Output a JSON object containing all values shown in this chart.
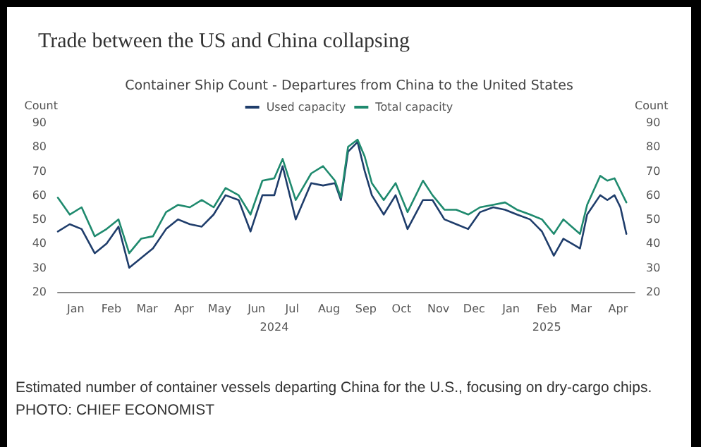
{
  "chart_data": {
    "type": "line",
    "title": "Trade between the US and China collapsing",
    "subtitle": "Container Ship Count - Departures from China to the United States",
    "ylabel": "Count",
    "y2label": "Count",
    "x": [
      "2024-01-01",
      "2024-01-11",
      "2024-01-21",
      "2024-02-01",
      "2024-02-11",
      "2024-02-21",
      "2024-03-01",
      "2024-03-11",
      "2024-03-21",
      "2024-04-01",
      "2024-04-11",
      "2024-04-21",
      "2024-05-01",
      "2024-05-11",
      "2024-05-21",
      "2024-06-01",
      "2024-06-11",
      "2024-06-21",
      "2024-07-01",
      "2024-07-08",
      "2024-07-19",
      "2024-08-01",
      "2024-08-11",
      "2024-08-21",
      "2024-08-26",
      "2024-09-01",
      "2024-09-09",
      "2024-09-15",
      "2024-09-21",
      "2024-10-01",
      "2024-10-11",
      "2024-10-21",
      "2024-11-03",
      "2024-11-11",
      "2024-11-21",
      "2024-12-01",
      "2024-12-11",
      "2024-12-21",
      "2025-01-01",
      "2025-01-11",
      "2025-01-21",
      "2025-02-01",
      "2025-02-11",
      "2025-02-21",
      "2025-03-01",
      "2025-03-08",
      "2025-03-15",
      "2025-03-21",
      "2025-04-01",
      "2025-04-07",
      "2025-04-13",
      "2025-04-18",
      "2025-04-23"
    ],
    "series": [
      {
        "name": "Used capacity",
        "color": "#1f3d6b",
        "values": [
          45,
          48,
          46,
          36,
          40,
          47,
          30,
          34,
          38,
          46,
          50,
          48,
          47,
          52,
          60,
          58,
          45,
          60,
          60,
          72,
          50,
          65,
          64,
          65,
          58,
          78,
          82,
          70,
          60,
          52,
          60,
          46,
          58,
          58,
          50,
          48,
          46,
          53,
          55,
          54,
          52,
          50,
          45,
          35,
          42,
          40,
          38,
          52,
          60,
          58,
          60,
          55,
          44
        ]
      },
      {
        "name": "Total capacity",
        "color": "#1f8a6e",
        "values": [
          59,
          52,
          55,
          43,
          46,
          50,
          36,
          42,
          43,
          53,
          56,
          55,
          58,
          55,
          63,
          60,
          52,
          66,
          67,
          75,
          58,
          69,
          72,
          66,
          59,
          80,
          83,
          76,
          65,
          58,
          65,
          53,
          66,
          60,
          54,
          54,
          52,
          55,
          56,
          57,
          54,
          52,
          50,
          44,
          50,
          47,
          44,
          56,
          68,
          66,
          67,
          62,
          57
        ]
      }
    ],
    "xlim": [
      "2024-01-01",
      "2025-04-30"
    ],
    "xticks": [
      {
        "value": "2024-01-16",
        "label": "Jan"
      },
      {
        "value": "2024-02-15",
        "label": "Feb"
      },
      {
        "value": "2024-03-16",
        "label": "Mar"
      },
      {
        "value": "2024-04-16",
        "label": "Apr"
      },
      {
        "value": "2024-05-16",
        "label": "May"
      },
      {
        "value": "2024-06-16",
        "label": "Jun"
      },
      {
        "value": "2024-07-16",
        "label": "Jul"
      },
      {
        "value": "2024-08-16",
        "label": "Aug"
      },
      {
        "value": "2024-09-16",
        "label": "Sep"
      },
      {
        "value": "2024-10-16",
        "label": "Oct"
      },
      {
        "value": "2024-11-16",
        "label": "Nov"
      },
      {
        "value": "2024-12-16",
        "label": "Dec"
      },
      {
        "value": "2025-01-16",
        "label": "Jan"
      },
      {
        "value": "2025-02-15",
        "label": "Feb"
      },
      {
        "value": "2025-03-16",
        "label": "Mar"
      },
      {
        "value": "2025-04-16",
        "label": "Apr"
      }
    ],
    "x2lim": [
      "2024-01-01",
      "2025-04-30"
    ],
    "x2ticks": [
      {
        "value": "2024-07-01",
        "label": "2024"
      },
      {
        "value": "2025-02-15",
        "label": "2025"
      }
    ],
    "ylim": [
      20,
      90
    ],
    "yticks": [
      20,
      30,
      40,
      50,
      60,
      70,
      80,
      90
    ],
    "y2lim": [
      20,
      90
    ],
    "y2ticks": [
      20,
      30,
      40,
      50,
      60,
      70,
      80,
      90
    ],
    "grid": false,
    "legend": "top",
    "marker": "none",
    "line_style": "solid",
    "annotations": [
      "Estimated number of container vessels departing China for the U.S., focusing on dry-cargo chips.",
      "PHOTO: CHIEF ECONOMIST"
    ]
  }
}
